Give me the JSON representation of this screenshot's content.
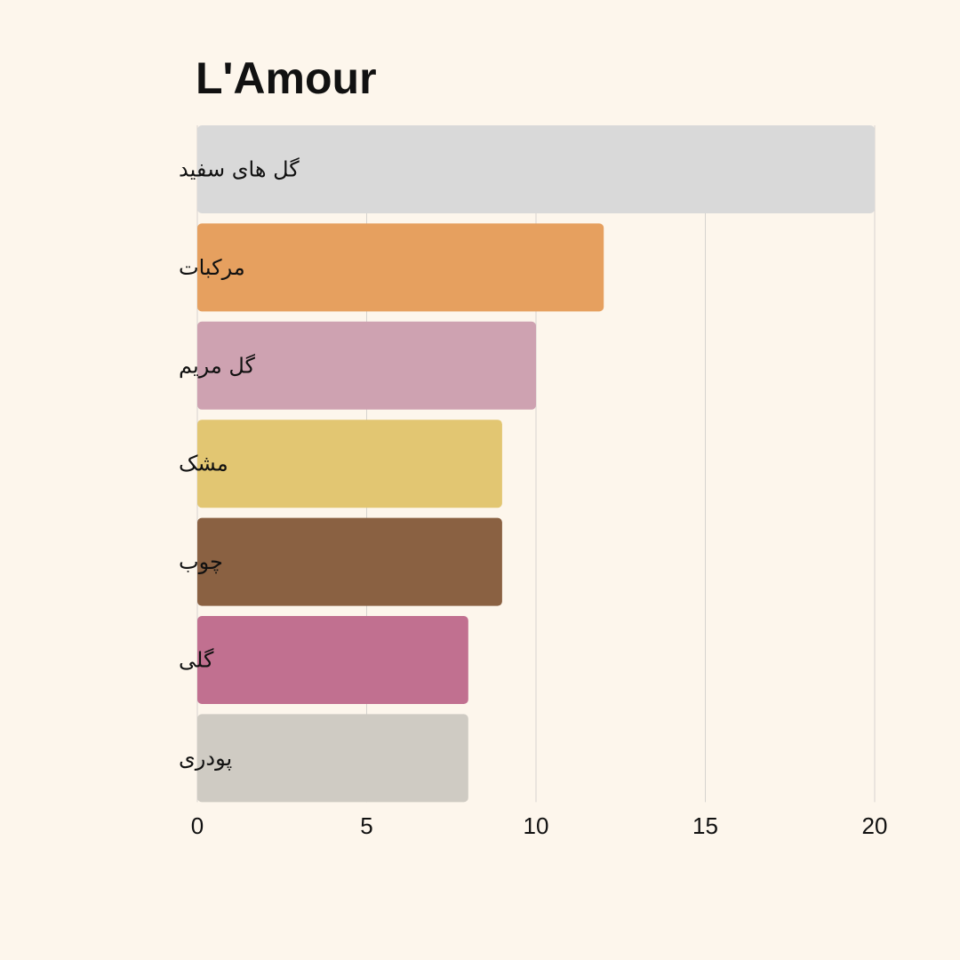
{
  "chart_data": {
    "type": "bar",
    "orientation": "horizontal",
    "title": "L'Amour",
    "xlabel": "",
    "ylabel": "",
    "categories": [
      "گل های سفید",
      "مرکبات",
      "گل مریم",
      "مشک",
      "چوب",
      "گلی",
      "پودری"
    ],
    "values": [
      20,
      12,
      10,
      9,
      9,
      8,
      8
    ],
    "colors": [
      "#d9d9d9",
      "#e6a05f",
      "#cea2b1",
      "#e2c672",
      "#8a6142",
      "#c17090",
      "#cfcbc3"
    ],
    "xlim": [
      0,
      20
    ],
    "xticks": [
      0,
      5,
      10,
      15,
      20
    ],
    "xtick_labels": [
      "0",
      "5",
      "10",
      "15",
      "20"
    ],
    "grid": true,
    "legend": "none"
  }
}
